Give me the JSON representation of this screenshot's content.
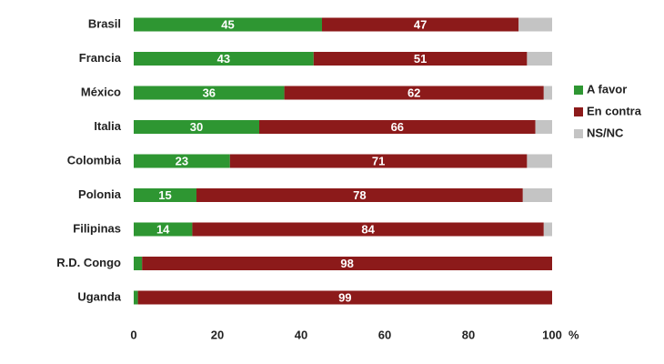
{
  "chart_data": {
    "type": "stacked-bar-horizontal",
    "categories": [
      "Brasil",
      "Francia",
      "México",
      "Italia",
      "Colombia",
      "Polonia",
      "Filipinas",
      "R.D. Congo",
      "Uganda"
    ],
    "series": [
      {
        "name": "A favor",
        "color": "#2e9632",
        "show_values": true,
        "values": [
          45,
          43,
          36,
          30,
          23,
          15,
          14,
          2,
          1
        ]
      },
      {
        "name": "En contra",
        "color": "#8c1a1a",
        "show_values": true,
        "values": [
          47,
          51,
          62,
          66,
          71,
          78,
          84,
          98,
          99
        ]
      },
      {
        "name": "NS/NC",
        "color": "#c4c4c4",
        "show_values": false,
        "values": [
          8,
          6,
          2,
          4,
          6,
          7,
          2,
          0,
          0
        ]
      }
    ],
    "xlim": [
      0,
      100
    ],
    "xticks": [
      0,
      20,
      40,
      60,
      80,
      100
    ],
    "xlabel": "%",
    "legend": "right"
  }
}
